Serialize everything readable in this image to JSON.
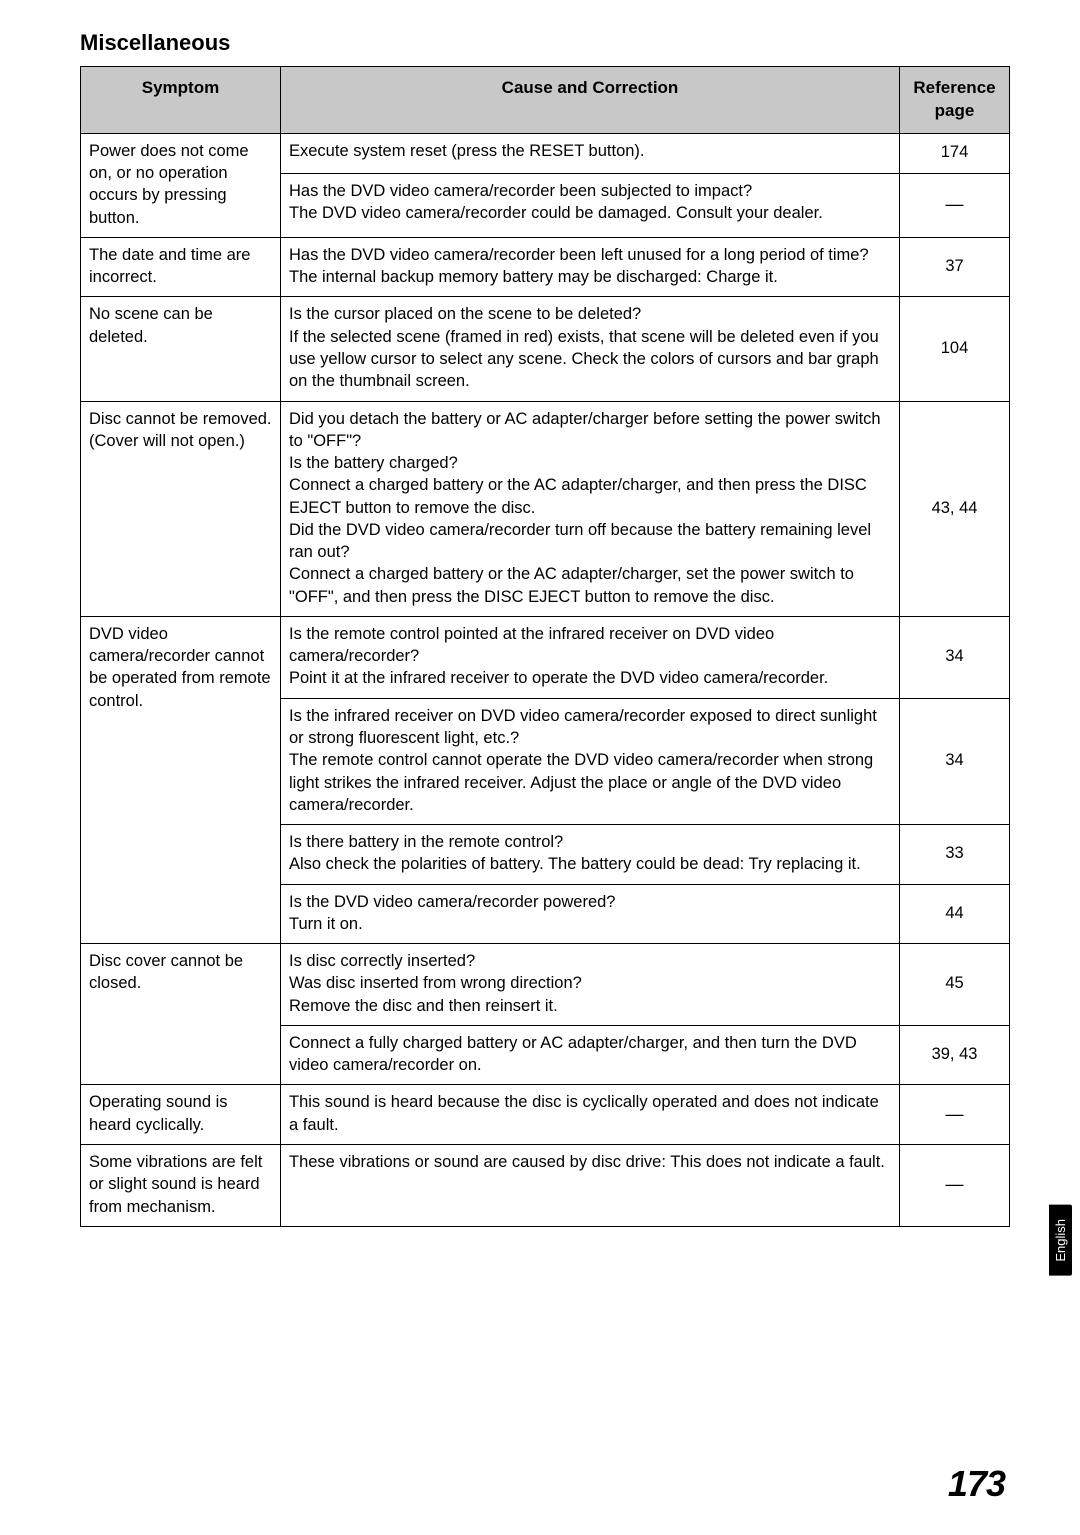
{
  "section_title": "Miscellaneous",
  "headers": {
    "symptom": "Symptom",
    "cause": "Cause and Correction",
    "reference": "Reference page"
  },
  "rows": [
    {
      "symptom": "Power does not come on, or no operation occurs by pressing button.",
      "symptom_rowspan": 2,
      "cells": [
        {
          "cause": "Execute system reset (press the RESET button).",
          "ref": "174"
        },
        {
          "cause": "Has the DVD video camera/recorder been subjected to impact?\nThe DVD video camera/recorder could be damaged. Consult your dealer.",
          "ref": "—"
        }
      ]
    },
    {
      "symptom": "The date and time are incorrect.",
      "symptom_rowspan": 1,
      "cells": [
        {
          "cause": "Has the DVD video camera/recorder been left unused for a long period of time?\nThe internal backup memory battery may be discharged: Charge it.",
          "ref": "37"
        }
      ]
    },
    {
      "symptom": "No scene can be deleted.",
      "symptom_rowspan": 1,
      "cells": [
        {
          "cause": "Is the cursor placed on the scene to be deleted?\nIf the selected scene (framed in red) exists, that scene will be deleted even if you use yellow cursor to select any scene. Check the colors of cursors and bar graph on the thumbnail screen.",
          "ref": "104"
        }
      ]
    },
    {
      "symptom": "Disc cannot be removed.\n(Cover will not open.)",
      "symptom_rowspan": 1,
      "cells": [
        {
          "cause": "Did you detach the battery or AC adapter/charger before setting the power switch to \"OFF\"?\nIs the battery charged?\nConnect a charged battery or the AC adapter/charger, and then press the DISC EJECT button to remove the disc.\nDid the DVD video camera/recorder turn off because the battery remaining level ran out?\nConnect a charged battery or the AC adapter/charger, set the power switch to \"OFF\", and then press the DISC EJECT button to remove the disc.",
          "ref": "43, 44"
        }
      ]
    },
    {
      "symptom": "DVD video camera/recorder cannot be operated from remote control.",
      "symptom_rowspan": 4,
      "cells": [
        {
          "cause": "Is the remote control pointed at the infrared receiver on DVD video camera/recorder?\nPoint it at the infrared receiver to operate the DVD video camera/recorder.",
          "ref": "34"
        },
        {
          "cause": "Is the infrared receiver on DVD video camera/recorder exposed to direct sunlight or strong fluorescent light, etc.?\nThe remote control cannot operate the DVD video camera/recorder when strong light strikes the infrared receiver. Adjust the place or angle of the DVD video camera/recorder.",
          "ref": "34"
        },
        {
          "cause": "Is there battery in the remote control?\nAlso check the polarities of battery. The battery could be dead: Try replacing it.",
          "ref": "33"
        },
        {
          "cause": "Is the DVD video camera/recorder powered?\nTurn it on.",
          "ref": "44"
        }
      ]
    },
    {
      "symptom": "Disc cover cannot be closed.",
      "symptom_rowspan": 2,
      "cells": [
        {
          "cause": "Is disc correctly inserted?\nWas disc inserted from wrong direction?\nRemove the disc and then reinsert it.",
          "ref": "45"
        },
        {
          "cause": "Connect a fully charged battery or AC adapter/charger, and then turn the DVD video camera/recorder on.",
          "ref": "39, 43"
        }
      ]
    },
    {
      "symptom": "Operating sound is heard cyclically.",
      "symptom_rowspan": 1,
      "cells": [
        {
          "cause": "This sound is heard because the disc is cyclically operated and does not indicate a fault.",
          "ref": "—"
        }
      ]
    },
    {
      "symptom": "Some vibrations are felt or slight sound is heard from mechanism.",
      "symptom_rowspan": 1,
      "cells": [
        {
          "cause": "These vibrations or sound are caused by disc drive: This does not indicate a fault.",
          "ref": "—"
        }
      ]
    }
  ],
  "side_tab": "English",
  "page_number": "173",
  "colors": {
    "header_bg": "#c8c8c8",
    "border": "#000000",
    "text": "#000000",
    "page_bg": "#ffffff",
    "tab_bg": "#000000",
    "tab_text": "#ffffff"
  },
  "fonts": {
    "section_title_size": 22,
    "body_size": 16.5,
    "header_size": 17,
    "page_number_size": 36
  }
}
